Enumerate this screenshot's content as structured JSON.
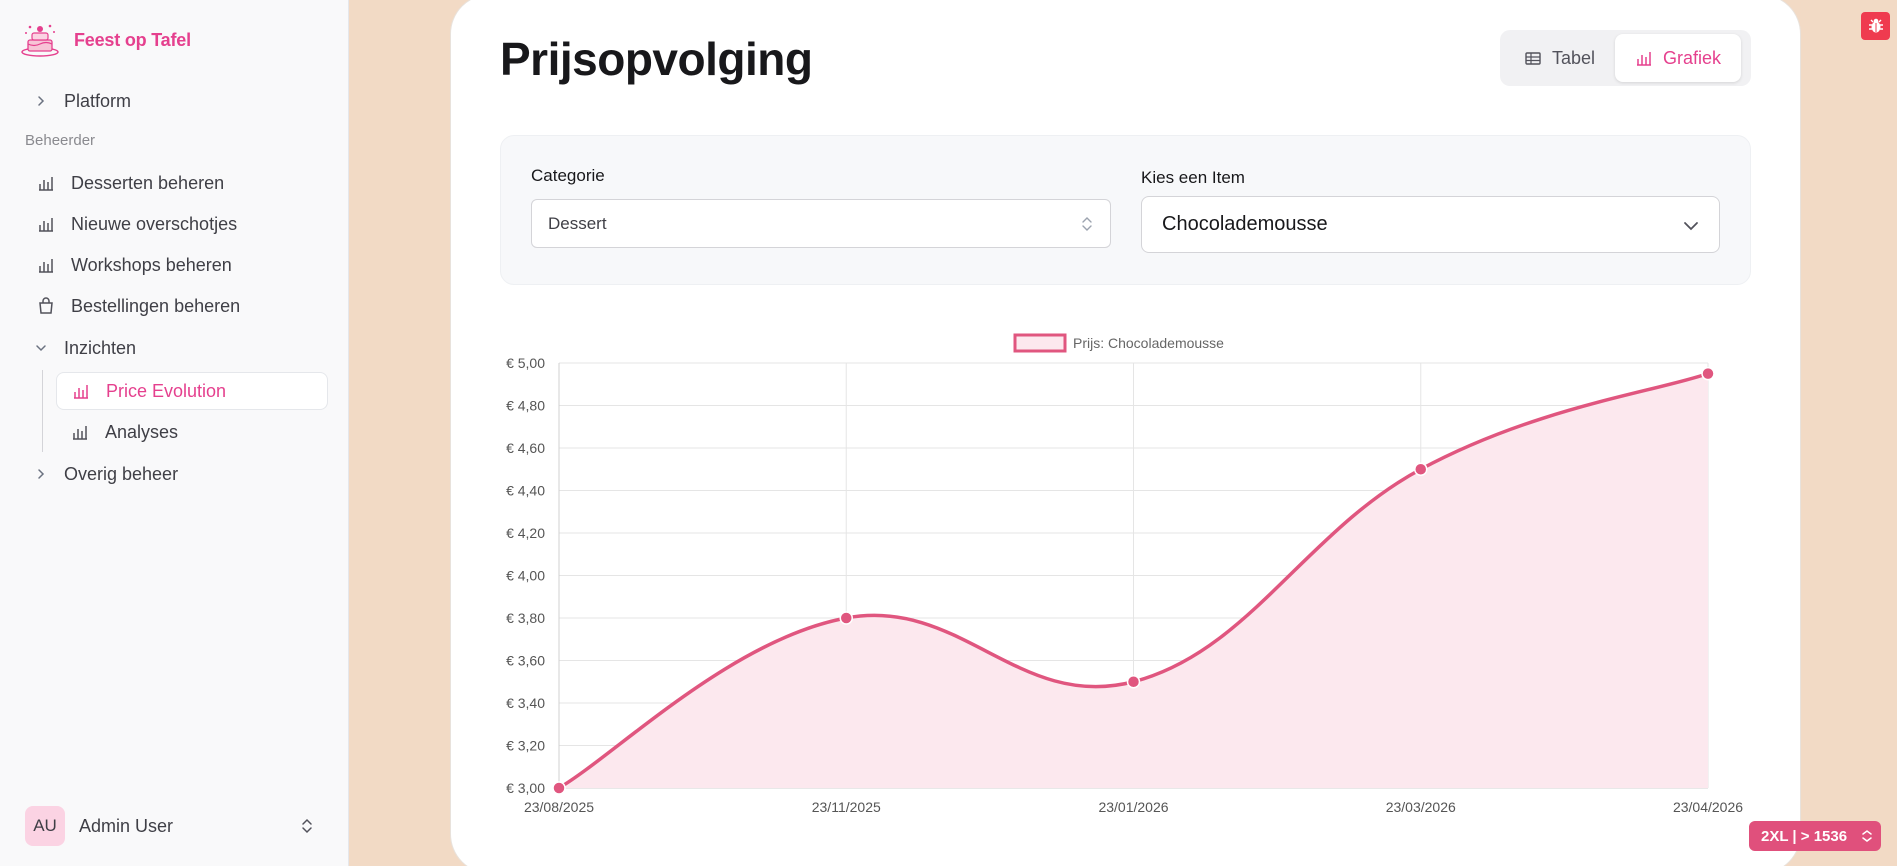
{
  "app": {
    "name": "Feest op Tafel"
  },
  "sidebar": {
    "platform": "Platform",
    "section_label": "Beheerder",
    "items": [
      {
        "label": "Desserten beheren",
        "icon": "bar-chart-icon"
      },
      {
        "label": "Nieuwe overschotjes",
        "icon": "bar-chart-icon"
      },
      {
        "label": "Workshops beheren",
        "icon": "bar-chart-icon"
      },
      {
        "label": "Bestellingen beheren",
        "icon": "shopping-bag-icon"
      }
    ],
    "insights": {
      "label": "Inzichten",
      "children": [
        {
          "label": "Price Evolution",
          "active": true
        },
        {
          "label": "Analyses",
          "active": false
        }
      ]
    },
    "other": "Overig beheer",
    "user": {
      "initials": "AU",
      "name": "Admin User"
    }
  },
  "main": {
    "title": "Prijsopvolging",
    "view_toggle": {
      "table_label": "Tabel",
      "chart_label": "Grafiek",
      "selected": "Grafiek"
    },
    "filters": {
      "category_label": "Categorie",
      "category_value": "Dessert",
      "item_label": "Kies een Item",
      "item_value": "Chocolademousse"
    }
  },
  "chart_data": {
    "type": "line",
    "legend": "Prijs: Chocolademousse",
    "series": [
      {
        "name": "Prijs: Chocolademousse",
        "x": [
          "23/08/2025",
          "23/11/2025",
          "23/01/2026",
          "23/03/2026",
          "23/04/2026"
        ],
        "values": [
          3.0,
          3.8,
          3.5,
          4.5,
          4.95
        ]
      }
    ],
    "yticks": [
      "€ 3,00",
      "€ 3,20",
      "€ 3,40",
      "€ 3,60",
      "€ 3,80",
      "€ 4,00",
      "€ 4,20",
      "€ 4,40",
      "€ 4,60",
      "€ 4,80",
      "€ 5,00"
    ],
    "ylim": [
      3.0,
      5.0
    ],
    "grid": true,
    "filled": true,
    "color": "#e0567f",
    "fill_color": "#fce8ee"
  },
  "dev": {
    "breakpoint": "2XL | > 1536"
  },
  "colors": {
    "accent": "#e5408e",
    "bug": "#ef3b4f"
  }
}
